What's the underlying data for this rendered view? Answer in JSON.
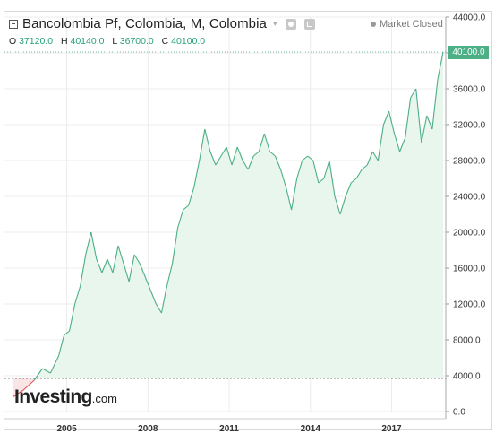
{
  "header": {
    "title": "Bancolombia Pf, Colombia, M, Colombia",
    "dropdown_glyph": "▾",
    "market_status": "Market Closed",
    "ohlc": {
      "o_label": "O",
      "o_value": "37120.0",
      "h_label": "H",
      "h_value": "40140.0",
      "l_label": "L",
      "l_value": "36700.0",
      "c_label": "C",
      "c_value": "40100.0"
    }
  },
  "icons": [
    "collapse-icon",
    "chevron-down-icon",
    "gear-icon",
    "camera-icon",
    "status-dot-icon"
  ],
  "logo": {
    "brand": "Investing",
    "suffix": ".com"
  },
  "current_price_label": "40100.0",
  "colors": {
    "line": "#4caf86",
    "area": "#e8f6ee",
    "below_line": "#e0505a",
    "below_area": "#fbe4e6",
    "grid": "#ececec",
    "price_tag": "#4caf86"
  },
  "chart_data": {
    "type": "area",
    "title": "Bancolombia Pf, Colombia, M, Colombia",
    "xlabel": "",
    "ylabel": "",
    "x_ticks": [
      "2005",
      "2008",
      "2011",
      "2014",
      "2017"
    ],
    "y_ticks": [
      "0.0",
      "4000.0",
      "8000.0",
      "12000.0",
      "16000.0",
      "20000.0",
      "24000.0",
      "28000.0",
      "32000.0",
      "36000.0",
      "40000.0",
      "44000.0"
    ],
    "ylim": [
      0,
      44000
    ],
    "xlim": [
      2002.7,
      2019.0
    ],
    "baseline": 3700,
    "grid": true,
    "series": [
      {
        "x": [
          2003.0,
          2003.4,
          2003.8,
          2004.1,
          2004.4,
          2004.7,
          2004.9,
          2005.1,
          2005.3,
          2005.5,
          2005.7,
          2005.9,
          2006.1,
          2006.3,
          2006.5,
          2006.7,
          2006.9,
          2007.1,
          2007.3,
          2007.5,
          2007.7,
          2007.9,
          2008.1,
          2008.3,
          2008.5,
          2008.7,
          2008.9,
          2009.1,
          2009.3,
          2009.5,
          2009.7,
          2009.9,
          2010.1,
          2010.3,
          2010.5,
          2010.7,
          2010.9,
          2011.1,
          2011.3,
          2011.5,
          2011.7,
          2011.9,
          2012.1,
          2012.3,
          2012.5,
          2012.7,
          2012.9,
          2013.1,
          2013.3,
          2013.5,
          2013.7,
          2013.9,
          2014.1,
          2014.3,
          2014.5,
          2014.7,
          2014.9,
          2015.1,
          2015.3,
          2015.5,
          2015.7,
          2015.9,
          2016.1,
          2016.3,
          2016.5,
          2016.7,
          2016.9,
          2017.1,
          2017.3,
          2017.5,
          2017.7,
          2017.9,
          2018.1,
          2018.3,
          2018.5,
          2018.7,
          2018.9
        ],
        "y": [
          1600,
          2400,
          3500,
          4800,
          4300,
          6200,
          8500,
          9000,
          12000,
          14000,
          17500,
          20000,
          17000,
          15500,
          17000,
          15500,
          18500,
          16500,
          14500,
          17500,
          16500,
          15000,
          13500,
          12000,
          11000,
          14000,
          16500,
          20500,
          22500,
          23000,
          25000,
          28000,
          31500,
          29000,
          27500,
          28500,
          29500,
          27500,
          29500,
          28000,
          27000,
          28500,
          29000,
          31000,
          29000,
          28500,
          27000,
          25000,
          22500,
          26000,
          28000,
          28500,
          28000,
          25500,
          26000,
          28000,
          24000,
          22000,
          24000,
          25500,
          26000,
          27000,
          27500,
          29000,
          28000,
          32000,
          33500,
          31000,
          29000,
          30500,
          35000,
          36000,
          30000,
          33000,
          31500,
          37000,
          40100
        ]
      }
    ]
  }
}
